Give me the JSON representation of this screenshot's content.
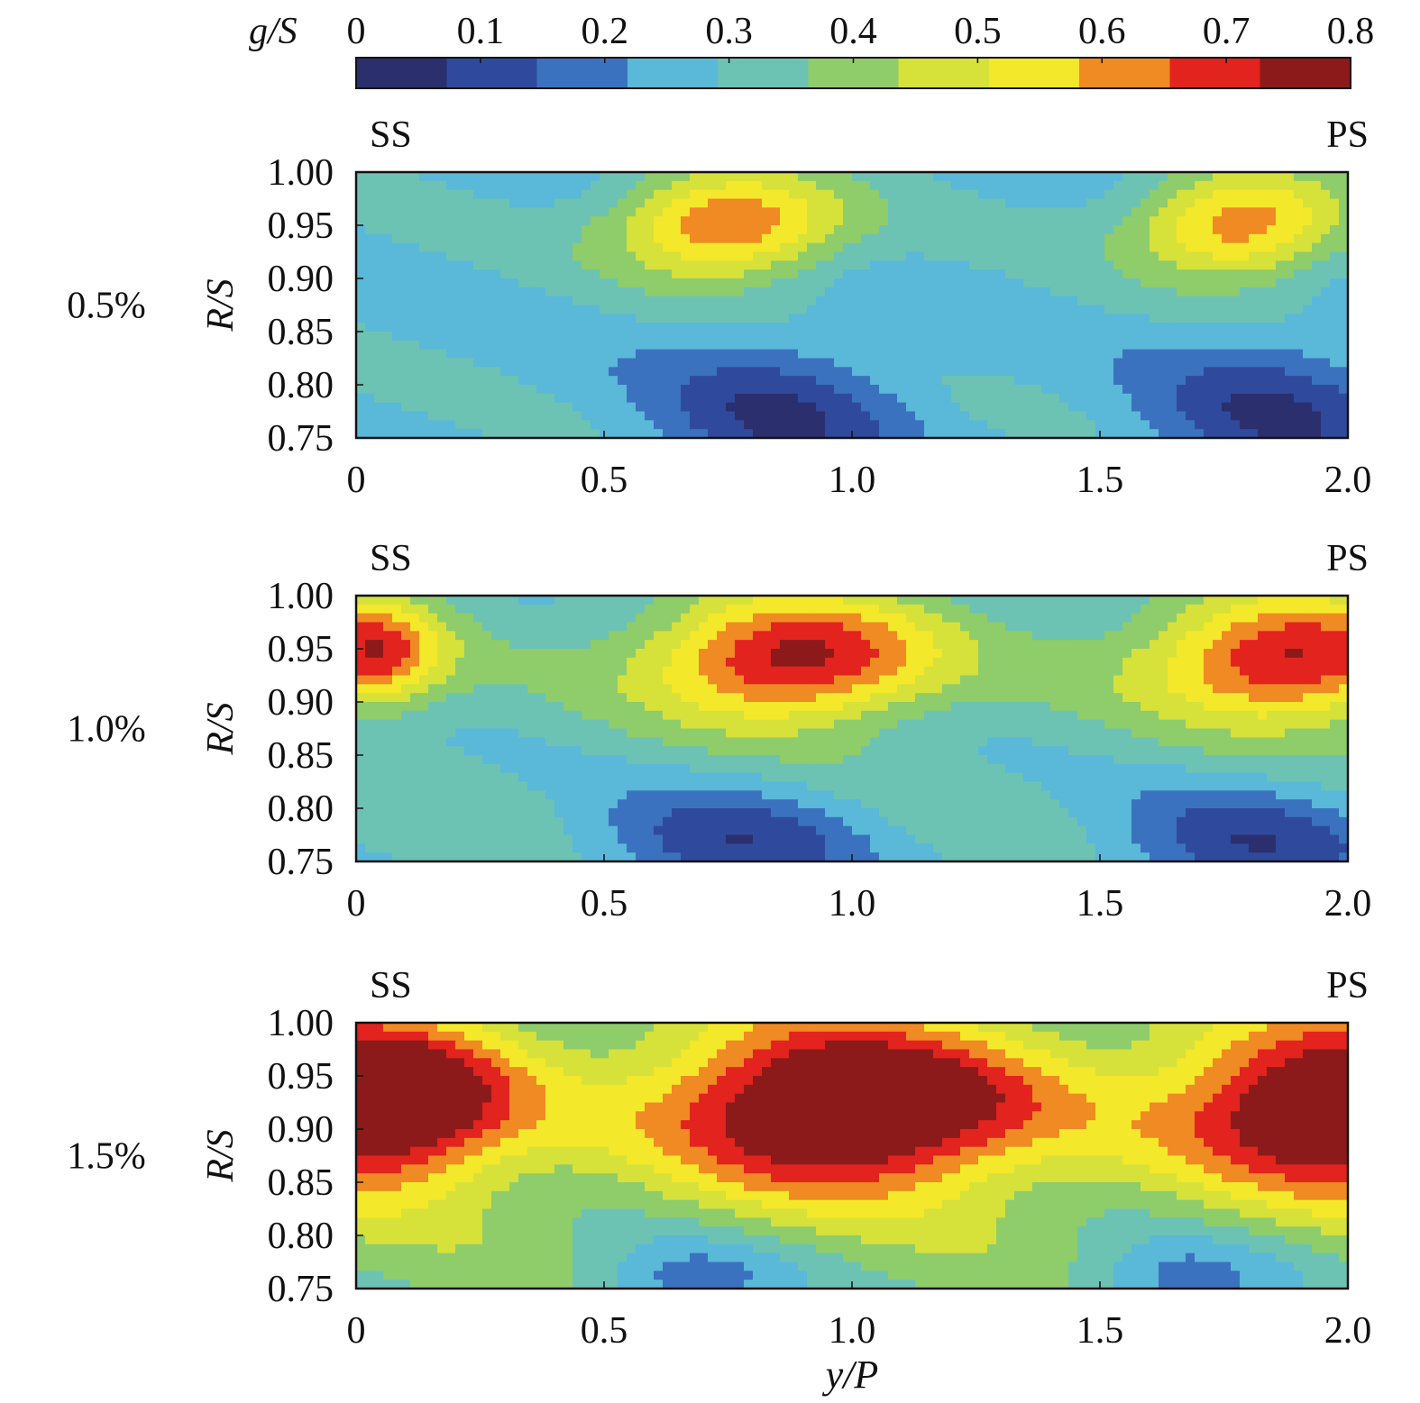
{
  "chart_data": {
    "type": "heatmap",
    "colorbar": {
      "label_var": "g",
      "label_sep": "/S",
      "ticks": [
        "0",
        "0.1",
        "0.2",
        "0.3",
        "0.4",
        "0.5",
        "0.6",
        "0.7",
        "0.8"
      ],
      "range": [
        0,
        0.8
      ],
      "colors": [
        "#2b2f6e",
        "#2f4a9c",
        "#3a72c0",
        "#5ab8d8",
        "#6cc3b3",
        "#8fcc6a",
        "#d6e13a",
        "#f4e82a",
        "#f08a22",
        "#e2231e",
        "#8c1a1a"
      ]
    },
    "x_tick_labels": [
      "0",
      "0.5",
      "1.0",
      "1.5",
      "2.0"
    ],
    "x_ticks": [
      0,
      0.5,
      1.0,
      1.5,
      2.0
    ],
    "xlim": [
      0,
      2.0
    ],
    "y_tick_labels": [
      "1.00",
      "0.95",
      "0.90",
      "0.85",
      "0.80",
      "0.75"
    ],
    "y_ticks": [
      1.0,
      0.95,
      0.9,
      0.85,
      0.8,
      0.75
    ],
    "ylim": [
      0.75,
      1.0
    ],
    "xlabel_var": "y",
    "xlabel_rest": "/P",
    "ylabel_var": "R",
    "ylabel_rest": "/S",
    "left_side_label": "SS",
    "right_side_label": "PS",
    "panels": [
      {
        "case_label": "0.5%",
        "vortices": [
          {
            "x": 0.75,
            "y": 0.95,
            "peak": 0.68,
            "sx": 0.16,
            "sy": 0.035
          },
          {
            "x": 1.78,
            "y": 0.95,
            "peak": 0.65,
            "sx": 0.15,
            "sy": 0.035
          }
        ],
        "lows": [
          {
            "x": 0.85,
            "y": 0.77,
            "depth": 0.2,
            "sx": 0.18,
            "sy": 0.05
          },
          {
            "x": 1.85,
            "y": 0.77,
            "depth": 0.2,
            "sx": 0.18,
            "sy": 0.05
          }
        ],
        "base": 0.28
      },
      {
        "case_label": "1.0%",
        "vortices": [
          {
            "x": 0.03,
            "y": 0.945,
            "peak": 0.72,
            "sx": 0.1,
            "sy": 0.035
          },
          {
            "x": 0.88,
            "y": 0.94,
            "peak": 0.78,
            "sx": 0.2,
            "sy": 0.04
          },
          {
            "x": 1.88,
            "y": 0.94,
            "peak": 0.76,
            "sx": 0.2,
            "sy": 0.04
          }
        ],
        "lows": [
          {
            "x": 0.75,
            "y": 0.765,
            "depth": 0.22,
            "sx": 0.2,
            "sy": 0.04
          },
          {
            "x": 1.8,
            "y": 0.765,
            "depth": 0.22,
            "sx": 0.2,
            "sy": 0.04
          }
        ],
        "base": 0.32
      },
      {
        "case_label": "1.5%",
        "vortices": [
          {
            "x": 0.05,
            "y": 0.925,
            "peak": 0.95,
            "sx": 0.19,
            "sy": 0.055
          },
          {
            "x": 1.0,
            "y": 0.92,
            "peak": 0.95,
            "sx": 0.27,
            "sy": 0.055
          },
          {
            "x": 1.98,
            "y": 0.92,
            "peak": 0.92,
            "sx": 0.23,
            "sy": 0.055
          }
        ],
        "lows": [
          {
            "x": 0.67,
            "y": 0.755,
            "depth": 0.2,
            "sx": 0.15,
            "sy": 0.03
          },
          {
            "x": 1.67,
            "y": 0.755,
            "depth": 0.2,
            "sx": 0.15,
            "sy": 0.03
          }
        ],
        "base": 0.38
      }
    ]
  }
}
